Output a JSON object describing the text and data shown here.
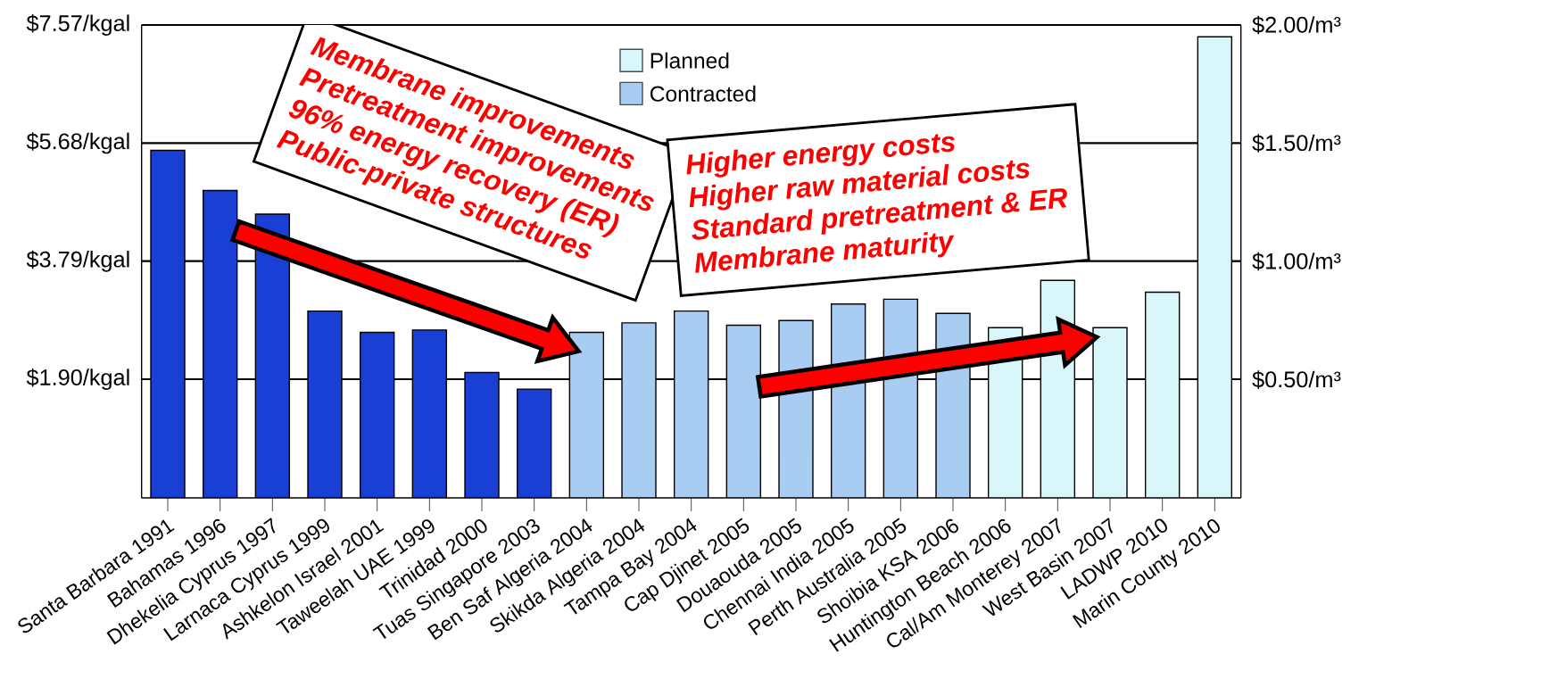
{
  "chart_data": {
    "type": "bar",
    "categories": [
      "Santa Barbara 1991",
      "Bahamas 1996",
      "Dhekelia Cyprus 1997",
      "Larnaca Cyprus 1999",
      "Ashkelon Israel 2001",
      "Taweelah UAE 1999",
      "Trinidad 2000",
      "Tuas Singapore 2003",
      "Ben Saf Algeria 2004",
      "Skikda Algeria 2004",
      "Tampa Bay 2004",
      "Cap Djinet 2005",
      "Douaouda 2005",
      "Chennai India 2005",
      "Perth Australia 2005",
      "Shoibia KSA 2006",
      "Huntington Beach 2006",
      "Cal/Am Monterey 2007",
      "West Basin 2007",
      "LADWP 2010",
      "Marin County 2010"
    ],
    "series": [
      {
        "color": "#1a3fd4",
        "axis": "y2",
        "values": [
          1.47,
          1.3,
          1.2,
          0.79,
          0.7,
          0.71,
          0.53,
          0.46,
          null,
          null,
          null,
          null,
          null,
          null,
          null,
          null,
          null,
          null,
          null,
          null,
          null
        ]
      },
      {
        "name": "Planned",
        "color": "#d9f7fb",
        "axis": "y2",
        "values": [
          null,
          null,
          null,
          null,
          null,
          null,
          null,
          null,
          null,
          null,
          null,
          null,
          null,
          null,
          null,
          null,
          0.72,
          0.92,
          0.72,
          0.87,
          1.95
        ]
      },
      {
        "name": "Contracted",
        "color": "#a9ccf2",
        "axis": "y2",
        "values": [
          null,
          null,
          null,
          null,
          null,
          null,
          null,
          null,
          0.7,
          0.74,
          0.79,
          0.73,
          0.75,
          0.82,
          0.84,
          0.78,
          null,
          null,
          null,
          null,
          null
        ]
      }
    ],
    "ylim": [
      0,
      7.57
    ],
    "yticks": [
      {
        "value": 1.9,
        "label": "$1.90/kgal"
      },
      {
        "value": 3.79,
        "label": "$3.79/kgal"
      },
      {
        "value": 5.68,
        "label": "$5.68/kgal"
      },
      {
        "value": 7.57,
        "label": "$7.57/kgal"
      }
    ],
    "y2lim": [
      0,
      2.0
    ],
    "y2ticks": [
      {
        "value": 0.5,
        "label": "$0.50/m³"
      },
      {
        "value": 1.0,
        "label": "$1.00/m³"
      },
      {
        "value": 1.5,
        "label": "$1.50/m³"
      },
      {
        "value": 2.0,
        "label": "$2.00/m³"
      }
    ],
    "grid": "y",
    "legend": "top",
    "annotations": [
      "Membrane improvements",
      "Pretreatment improvements",
      "96% energy recovery (ER)",
      "Public-private structures",
      "Higher energy costs",
      "Higher raw material costs",
      "Standard pretreatment & ER",
      "Membrane maturity"
    ]
  }
}
